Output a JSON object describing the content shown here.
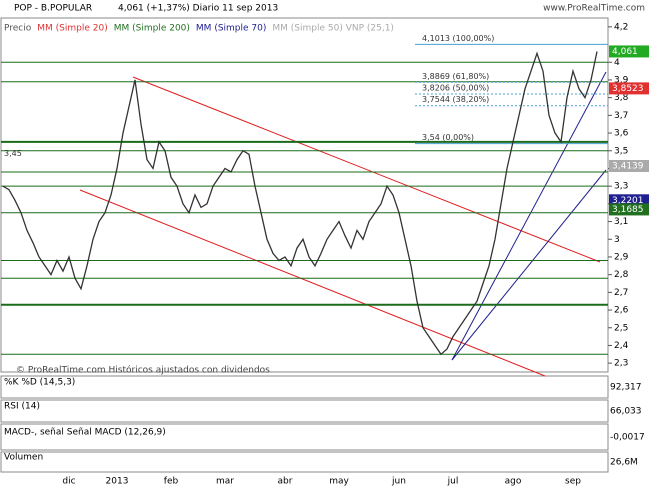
{
  "chart_data": {
    "type": "line",
    "title": "POP - B.POPULAR",
    "subtitle": "4,061 (+1,37%)   Diario  11 sep 2013",
    "source": "www.ProRealTime.com",
    "footer": "© ProRealTime.com  Históricos ajustados con dividendos",
    "legend": [
      {
        "label": "Precio",
        "color": "#555555"
      },
      {
        "label": "MM (Simple 20)",
        "color": "#e03030"
      },
      {
        "label": "MM (Simple 200)",
        "color": "#207020"
      },
      {
        "label": "MM (Simple 70)",
        "color": "#202090"
      },
      {
        "label": "MM (Simple 50) VNP (25,1)",
        "color": "#aaaaaa"
      }
    ],
    "categories": [
      null,
      null,
      null,
      null,
      null,
      null,
      null,
      null,
      null,
      null,
      null,
      "dic",
      null,
      null,
      null,
      null,
      null,
      null,
      null,
      "2013",
      null,
      null,
      null,
      null,
      null,
      null,
      null,
      null,
      "feb",
      null,
      null,
      null,
      null,
      null,
      null,
      null,
      null,
      "mar",
      null,
      null,
      null,
      null,
      null,
      null,
      null,
      null,
      null,
      "abr",
      null,
      null,
      null,
      null,
      null,
      null,
      null,
      null,
      "may",
      null,
      null,
      null,
      null,
      null,
      null,
      null,
      null,
      null,
      "jun",
      null,
      null,
      null,
      null,
      null,
      null,
      null,
      null,
      "jul",
      null,
      null,
      null,
      null,
      null,
      null,
      null,
      null,
      null,
      "ago",
      null,
      null,
      null,
      null,
      null,
      null,
      null,
      null,
      null,
      "sep",
      null,
      null,
      null,
      null
    ],
    "series": [
      {
        "name": "Precio",
        "color": "#333333",
        "values": [
          3.3,
          3.28,
          3.22,
          3.15,
          3.05,
          2.98,
          2.9,
          2.85,
          2.8,
          2.88,
          2.82,
          2.9,
          2.78,
          2.72,
          2.85,
          3.0,
          3.1,
          3.15,
          3.25,
          3.4,
          3.6,
          3.75,
          3.9,
          3.65,
          3.45,
          3.4,
          3.55,
          3.5,
          3.35,
          3.3,
          3.2,
          3.15,
          3.25,
          3.18,
          3.2,
          3.3,
          3.35,
          3.4,
          3.38,
          3.45,
          3.5,
          3.48,
          3.3,
          3.15,
          3.0,
          2.92,
          2.88,
          2.9,
          2.85,
          2.95,
          3.0,
          2.9,
          2.85,
          2.92,
          3.0,
          3.05,
          3.1,
          3.02,
          2.95,
          3.05,
          3.0,
          3.1,
          3.15,
          3.2,
          3.3,
          3.25,
          3.15,
          3.0,
          2.85,
          2.65,
          2.5,
          2.45,
          2.4,
          2.35,
          2.38,
          2.45,
          2.5,
          2.55,
          2.6,
          2.65,
          2.75,
          2.85,
          3.0,
          3.2,
          3.4,
          3.55,
          3.7,
          3.85,
          3.95,
          4.05,
          3.95,
          3.7,
          3.6,
          3.55,
          3.8,
          3.95,
          3.85,
          3.8,
          3.9,
          4.061
        ]
      }
    ],
    "ylim": [
      2.25,
      4.25
    ],
    "yticks": [
      {
        "value": 4.2,
        "label": "4,2"
      },
      4,
      {
        "value": 3.9,
        "label": "3,9"
      },
      {
        "value": 3.8,
        "label": "3,8"
      },
      {
        "value": 3.7,
        "label": "3,7"
      },
      {
        "value": 3.6,
        "label": "3,6"
      },
      {
        "value": 3.5,
        "label": "3,5"
      },
      {
        "value": 3.4,
        "label": "3,4"
      },
      {
        "value": 3.3,
        "label": "3,3"
      },
      {
        "value": 3.2,
        "label": "3,2"
      },
      {
        "value": 3.1,
        "label": "3,1"
      },
      3,
      {
        "value": 2.9,
        "label": "2,9"
      },
      {
        "value": 2.8,
        "label": "2,8"
      },
      {
        "value": 2.7,
        "label": "2,7"
      },
      {
        "value": 2.6,
        "label": "2,6"
      },
      {
        "value": 2.5,
        "label": "2,5"
      },
      {
        "value": 2.4,
        "label": "2,4"
      },
      {
        "value": 2.3,
        "label": "2,3"
      }
    ],
    "support_levels": [
      4.0,
      3.89,
      3.55,
      3.5,
      3.38,
      3.3,
      3.15,
      2.88,
      2.78,
      2.63,
      2.35
    ],
    "annotations": [
      {
        "value": 4.1013,
        "label": "4,1013 (100,00%)"
      },
      {
        "value": 3.8869,
        "label": "3,8869 (61,80%)"
      },
      {
        "value": 3.8206,
        "label": "3,8206 (50,00%)"
      },
      {
        "value": 3.7544,
        "label": "3,7544 (38,20%)"
      },
      {
        "value": 3.54,
        "label": "3,54 (0,00%)"
      },
      {
        "value": 3.45,
        "label": "3,45"
      }
    ],
    "price_labels": [
      {
        "value": 4.061,
        "label": "4,061",
        "color": "#22aa22"
      },
      {
        "value": 3.8523,
        "label": "3,8523",
        "color": "#e03030"
      },
      {
        "value": 3.4139,
        "label": "3,4139",
        "color": "#aaaaaa"
      },
      {
        "value": 3.2201,
        "label": "3,2201",
        "color": "#202090"
      },
      {
        "value": 3.1685,
        "label": "3,1685",
        "color": "#207020"
      }
    ],
    "panels": [
      {
        "label": "%K %D (14,5,3)",
        "value_label": "92,317"
      },
      {
        "label": "RSI (14)",
        "value_label": "66,033"
      },
      {
        "label": "MACD-, señal Señal  MACD (12,26,9)",
        "value_label": "-0,0017"
      },
      {
        "label": "Volumen",
        "value_label": "26,6M"
      }
    ]
  }
}
